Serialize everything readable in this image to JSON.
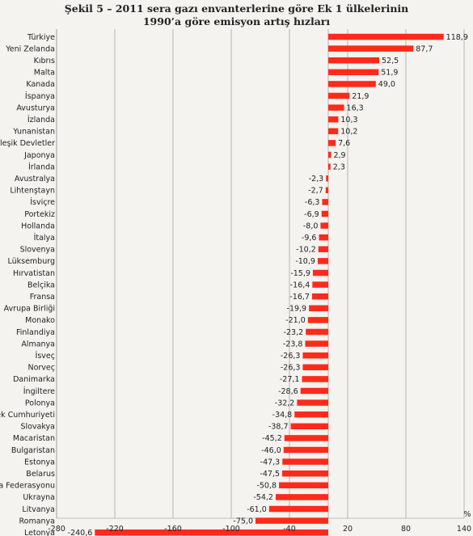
{
  "chart_data": {
    "type": "bar",
    "orientation": "horizontal",
    "title": "Şekil 5 – 2011 sera gazı envanterlerine göre Ek 1 ülkelerinin",
    "subtitle": "1990’a göre emisyon artış hızları",
    "unit_label": "%",
    "bar_color": "#ff2a1a",
    "grid": true,
    "xlim": [
      -280,
      140
    ],
    "xticks": [
      -280,
      -220,
      -160,
      -100,
      -40,
      20,
      80,
      140
    ],
    "tick_labels": [
      "-280",
      "-220",
      "-160",
      "-100",
      "-40",
      "20",
      "80",
      "140"
    ],
    "categories": [
      "Türkiye",
      "Yeni Zelanda",
      "Kıbrıs",
      "Malta",
      "Kanada",
      "İspanya",
      "Avusturya",
      "İzlanda",
      "Yunanistan",
      "Birleşik Devletler",
      "Japonya",
      "İrlanda",
      "Avustralya",
      "Lihtenştayn",
      "İsviçre",
      "Portekiz",
      "Hollanda",
      "İtalya",
      "Slovenya",
      "Lüksemburg",
      "Hırvatistan",
      "Belçika",
      "Fransa",
      "Avrupa Birliği",
      "Monako",
      "Finlandiya",
      "Almanya",
      "İsveç",
      "Norveç",
      "Danimarka",
      "İngiltere",
      "Polonya",
      "Çek Cumhuriyeti",
      "Slovakya",
      "Macaristan",
      "Bulgaristan",
      "Estonya",
      "Belarus",
      "Rusya Federasyonu",
      "Ukrayna",
      "Litvanya",
      "Romanya",
      "Letonya"
    ],
    "values": [
      118.9,
      87.7,
      52.5,
      51.9,
      49.0,
      21.9,
      16.3,
      10.3,
      10.2,
      7.6,
      2.9,
      2.3,
      -2.3,
      -2.7,
      -6.3,
      -6.9,
      -8.0,
      -9.6,
      -10.2,
      -10.9,
      -15.9,
      -16.4,
      -16.7,
      -19.9,
      -21.0,
      -23.2,
      -23.8,
      -26.3,
      -26.3,
      -27.1,
      -28.6,
      -32.2,
      -34.8,
      -38.7,
      -45.2,
      -46.0,
      -47.3,
      -47.5,
      -50.8,
      -54.2,
      -61.0,
      -75.0,
      -240.6
    ],
    "value_labels": [
      "118,9",
      "87,7",
      "52,5",
      "51,9",
      "49,0",
      "21,9",
      "16,3",
      "10,3",
      "10,2",
      "7,6",
      "2,9",
      "2,3",
      "-2,3",
      "-2,7",
      "-6,3",
      "-6,9",
      "-8,0",
      "-9,6",
      "-10,2",
      "-10,9",
      "-15,9",
      "-16,4",
      "-16,7",
      "-19,9",
      "-21,0",
      "-23,2",
      "-23,8",
      "-26,3",
      "-26,3",
      "-27,1",
      "-28,6",
      "-32,2",
      "-34,8",
      "-38,7",
      "-45,2",
      "-46,0",
      "-47,3",
      "-47,5",
      "-50,8",
      "-54,2",
      "-61,0",
      "-75,0",
      "-240,6"
    ]
  }
}
